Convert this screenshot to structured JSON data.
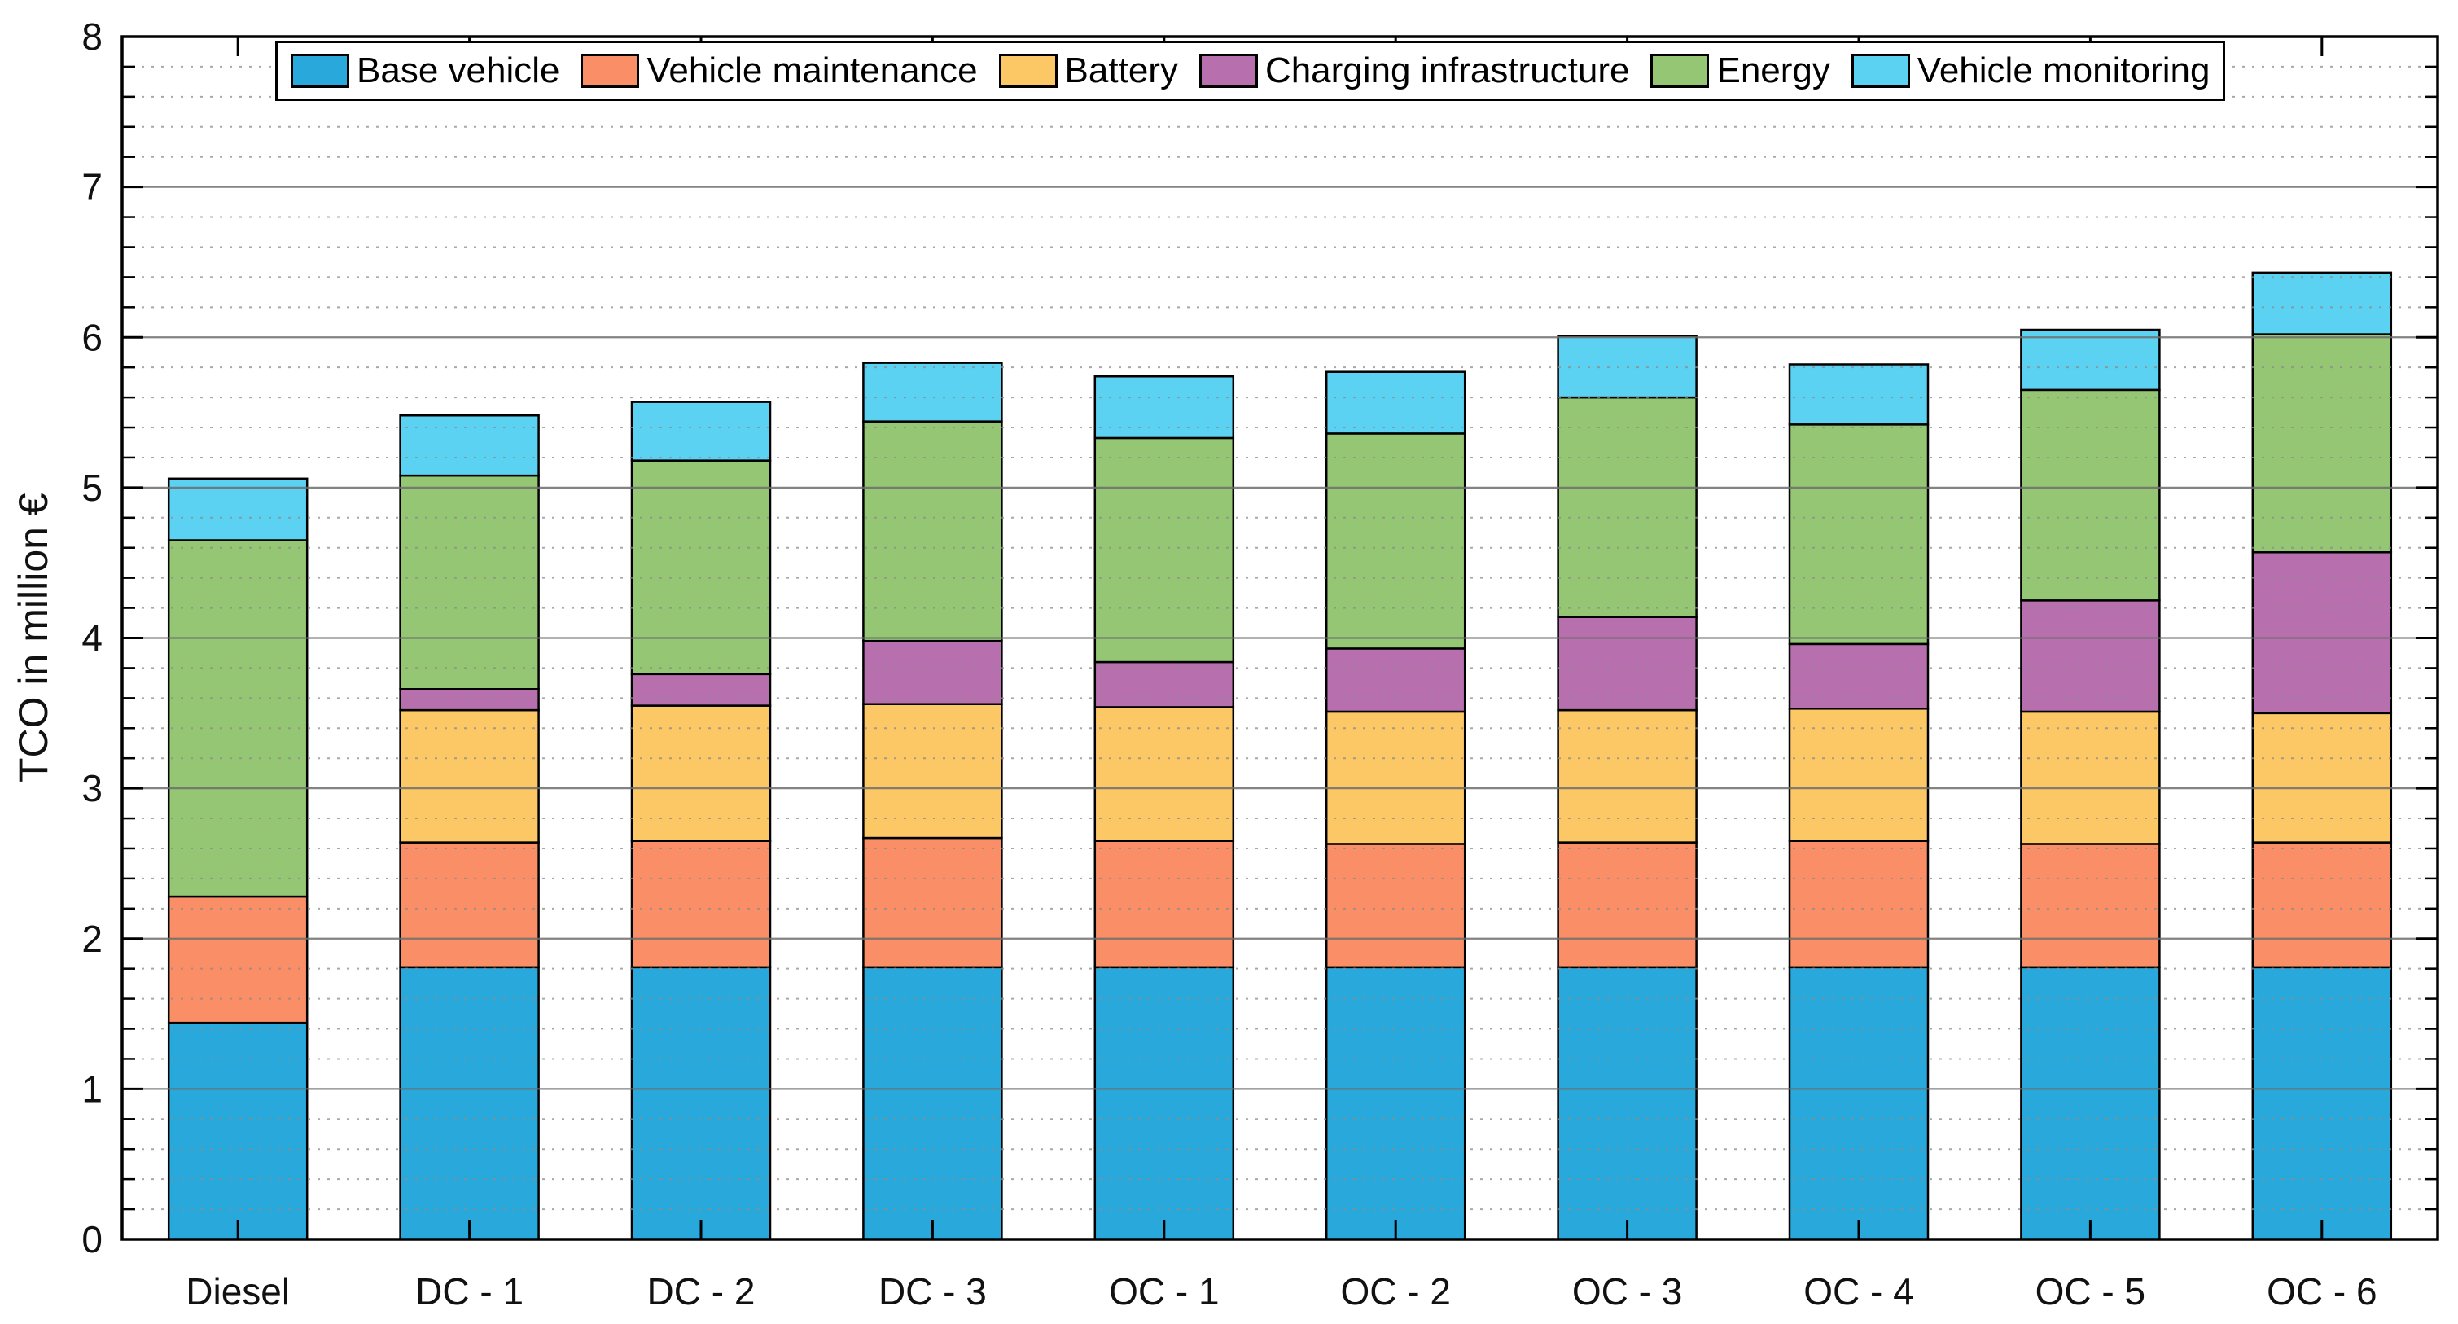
{
  "figure": {
    "background": "#ffffff",
    "plot_border_color": "#000000",
    "major_grid_color": "#6e6e6e",
    "minor_grid_color": "#8c8c8c",
    "text_color": "#111111"
  },
  "chart_data": {
    "type": "bar",
    "stacked": true,
    "title": "",
    "xlabel": "",
    "ylabel": "TCO in million €",
    "ylim": [
      0,
      8
    ],
    "y_major_step": 1,
    "y_minor_step": 0.2,
    "grid": {
      "major": "solid",
      "minor": "dotted",
      "layer": "top"
    },
    "legend_position": "top-inside-horizontal",
    "y_tick_labels": [
      "0",
      "1",
      "2",
      "3",
      "4",
      "5",
      "6",
      "7",
      "8"
    ],
    "categories": [
      "Diesel",
      "DC - 1",
      "DC - 2",
      "DC - 3",
      "OC - 1",
      "OC - 2",
      "OC - 3",
      "OC - 4",
      "OC - 5",
      "OC - 6"
    ],
    "series": [
      {
        "name": "Base vehicle",
        "color": "#29a8db",
        "values": [
          1.44,
          1.81,
          1.81,
          1.81,
          1.81,
          1.81,
          1.81,
          1.81,
          1.81,
          1.81
        ]
      },
      {
        "name": "Vehicle maintenance",
        "color": "#fa8e66",
        "values": [
          0.84,
          0.83,
          0.84,
          0.86,
          0.84,
          0.82,
          0.83,
          0.84,
          0.82,
          0.83
        ]
      },
      {
        "name": "Battery",
        "color": "#fcc765",
        "values": [
          0.0,
          0.88,
          0.9,
          0.89,
          0.89,
          0.88,
          0.88,
          0.88,
          0.88,
          0.86
        ]
      },
      {
        "name": "Charging infrastructure",
        "color": "#b76fae",
        "values": [
          0.0,
          0.14,
          0.21,
          0.42,
          0.3,
          0.42,
          0.62,
          0.43,
          0.74,
          1.07
        ]
      },
      {
        "name": "Energy",
        "color": "#94c673",
        "values": [
          2.37,
          1.42,
          1.42,
          1.46,
          1.49,
          1.43,
          1.46,
          1.46,
          1.4,
          1.45
        ]
      },
      {
        "name": "Vehicle monitoring",
        "color": "#5cd2f2",
        "values": [
          0.41,
          0.4,
          0.39,
          0.39,
          0.41,
          0.41,
          0.41,
          0.4,
          0.4,
          0.41
        ]
      }
    ],
    "totals": [
      5.06,
      5.48,
      5.57,
      5.83,
      5.74,
      5.77,
      6.01,
      5.82,
      6.05,
      6.43
    ]
  }
}
